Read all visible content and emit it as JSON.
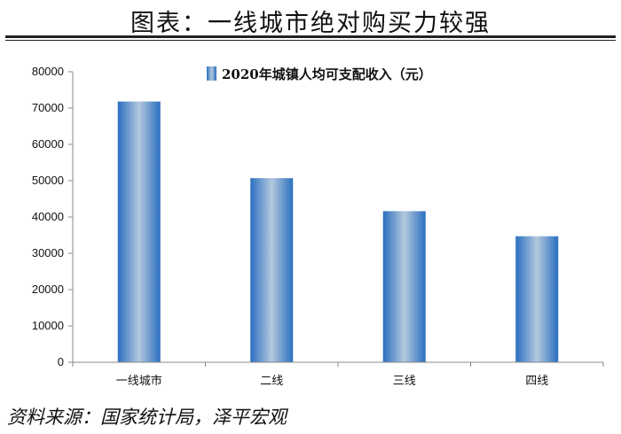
{
  "header": {
    "title": "图表：一线城市绝对购买力较强"
  },
  "footer": {
    "source": "资料来源：国家统计局，泽平宏观"
  },
  "colors": {
    "bar_dark": "#2a6fc0",
    "bar_light": "#b3c8de",
    "axis": "#888888"
  },
  "chart_data": {
    "type": "bar",
    "categories": [
      "一线城市",
      "二线",
      "三线",
      "四线"
    ],
    "series": [
      {
        "name": "2020年城镇人均可支配收入（元）",
        "values": [
          71800,
          50700,
          41600,
          34700
        ]
      }
    ],
    "ylim": [
      0,
      80000
    ],
    "yticks": [
      "0",
      "10000",
      "20000",
      "30000",
      "40000",
      "50000",
      "60000",
      "70000",
      "80000"
    ],
    "legend": "top-center",
    "grid": false
  }
}
